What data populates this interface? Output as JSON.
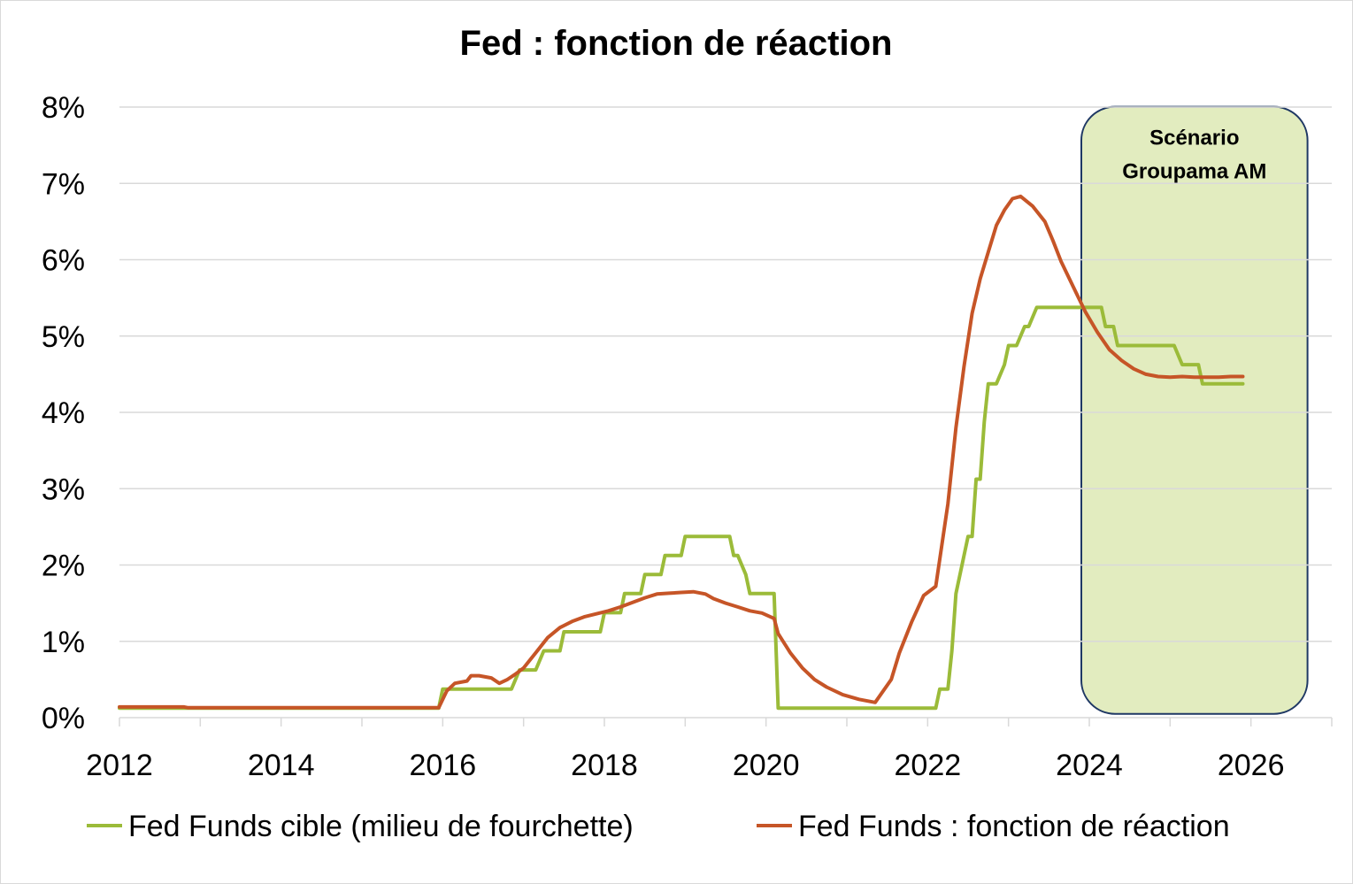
{
  "chart_data": {
    "type": "line",
    "title": "Fed : fonction de réaction",
    "xlabel": "",
    "ylabel": "",
    "xlim": [
      2012,
      2027
    ],
    "ylim": [
      0,
      8
    ],
    "grid": true,
    "legend_position": "bottom",
    "x_ticks": [
      "2012",
      "2014",
      "2016",
      "2018",
      "2020",
      "2022",
      "2024",
      "2026"
    ],
    "y_ticks": [
      "0%",
      "1%",
      "2%",
      "3%",
      "4%",
      "5%",
      "6%",
      "7%",
      "8%"
    ],
    "annotation": {
      "lines": [
        "Scénario",
        "Groupama AM"
      ],
      "x_range": [
        2024.0,
        2026.7
      ],
      "y_range": [
        0.05,
        7.97
      ],
      "fill": "#e2ecbf",
      "stroke": "#1f3864"
    },
    "series": [
      {
        "name": "Fed Funds cible (milieu de fourchette)",
        "color": "#9bbb39",
        "x": [
          2012.0,
          2015.95,
          2016.0,
          2016.85,
          2016.95,
          2017.15,
          2017.25,
          2017.45,
          2017.5,
          2017.95,
          2018.0,
          2018.2,
          2018.25,
          2018.45,
          2018.5,
          2018.7,
          2018.75,
          2018.95,
          2019.0,
          2019.5,
          2019.55,
          2019.6,
          2019.65,
          2019.75,
          2019.8,
          2020.1,
          2020.15,
          2020.2,
          2022.1,
          2022.15,
          2022.25,
          2022.3,
          2022.35,
          2022.5,
          2022.55,
          2022.6,
          2022.65,
          2022.7,
          2022.75,
          2022.85,
          2022.95,
          2023.0,
          2023.1,
          2023.2,
          2023.25,
          2023.35,
          2023.45,
          2023.5,
          2023.55,
          2024.0,
          2024.15,
          2024.2,
          2024.3,
          2024.35,
          2024.45,
          2024.5,
          2025.0,
          2025.05,
          2025.15,
          2025.2,
          2025.35,
          2025.4,
          2025.9
        ],
        "values": [
          0.125,
          0.125,
          0.375,
          0.375,
          0.625,
          0.625,
          0.875,
          0.875,
          1.125,
          1.125,
          1.375,
          1.375,
          1.625,
          1.625,
          1.875,
          1.875,
          2.125,
          2.125,
          2.375,
          2.375,
          2.375,
          2.125,
          2.125,
          1.875,
          1.625,
          1.625,
          0.125,
          0.125,
          0.125,
          0.375,
          0.375,
          0.875,
          1.625,
          2.375,
          2.375,
          3.125,
          3.125,
          3.875,
          4.375,
          4.375,
          4.625,
          4.875,
          4.875,
          5.125,
          5.125,
          5.375,
          5.375,
          5.375,
          5.375,
          5.375,
          5.375,
          5.125,
          5.125,
          4.875,
          4.875,
          4.875,
          4.875,
          4.875,
          4.625,
          4.625,
          4.625,
          4.375,
          4.375
        ]
      },
      {
        "name": "Fed Funds : fonction de réaction",
        "color": "#c65527",
        "x": [
          2012.0,
          2012.8,
          2012.85,
          2015.95,
          2016.05,
          2016.15,
          2016.3,
          2016.35,
          2016.45,
          2016.6,
          2016.7,
          2016.8,
          2016.9,
          2017.0,
          2017.15,
          2017.3,
          2017.45,
          2017.6,
          2017.75,
          2017.9,
          2018.05,
          2018.2,
          2018.35,
          2018.5,
          2018.65,
          2018.8,
          2018.95,
          2019.1,
          2019.25,
          2019.35,
          2019.5,
          2019.65,
          2019.8,
          2019.95,
          2020.1,
          2020.15,
          2020.3,
          2020.45,
          2020.6,
          2020.75,
          2020.95,
          2021.15,
          2021.35,
          2021.55,
          2021.65,
          2021.8,
          2021.95,
          2022.1,
          2022.25,
          2022.35,
          2022.45,
          2022.55,
          2022.65,
          2022.75,
          2022.85,
          2022.95,
          2023.05,
          2023.15,
          2023.3,
          2023.45,
          2023.55,
          2023.65,
          2023.8,
          2023.95,
          2024.1,
          2024.25,
          2024.4,
          2024.55,
          2024.7,
          2024.85,
          2025.0,
          2025.15,
          2025.3,
          2025.45,
          2025.6,
          2025.75,
          2025.85,
          2025.9
        ],
        "values": [
          0.14,
          0.14,
          0.13,
          0.13,
          0.35,
          0.45,
          0.48,
          0.55,
          0.55,
          0.52,
          0.45,
          0.5,
          0.57,
          0.65,
          0.85,
          1.05,
          1.18,
          1.26,
          1.32,
          1.36,
          1.4,
          1.45,
          1.51,
          1.57,
          1.62,
          1.63,
          1.64,
          1.65,
          1.62,
          1.56,
          1.5,
          1.45,
          1.4,
          1.37,
          1.3,
          1.1,
          0.85,
          0.65,
          0.5,
          0.4,
          0.3,
          0.24,
          0.2,
          0.5,
          0.85,
          1.25,
          1.6,
          1.72,
          2.8,
          3.8,
          4.6,
          5.3,
          5.75,
          6.1,
          6.45,
          6.65,
          6.8,
          6.83,
          6.7,
          6.5,
          6.25,
          5.98,
          5.65,
          5.32,
          5.05,
          4.82,
          4.68,
          4.57,
          4.5,
          4.47,
          4.46,
          4.47,
          4.46,
          4.46,
          4.46,
          4.47,
          4.47,
          4.47
        ]
      }
    ]
  }
}
